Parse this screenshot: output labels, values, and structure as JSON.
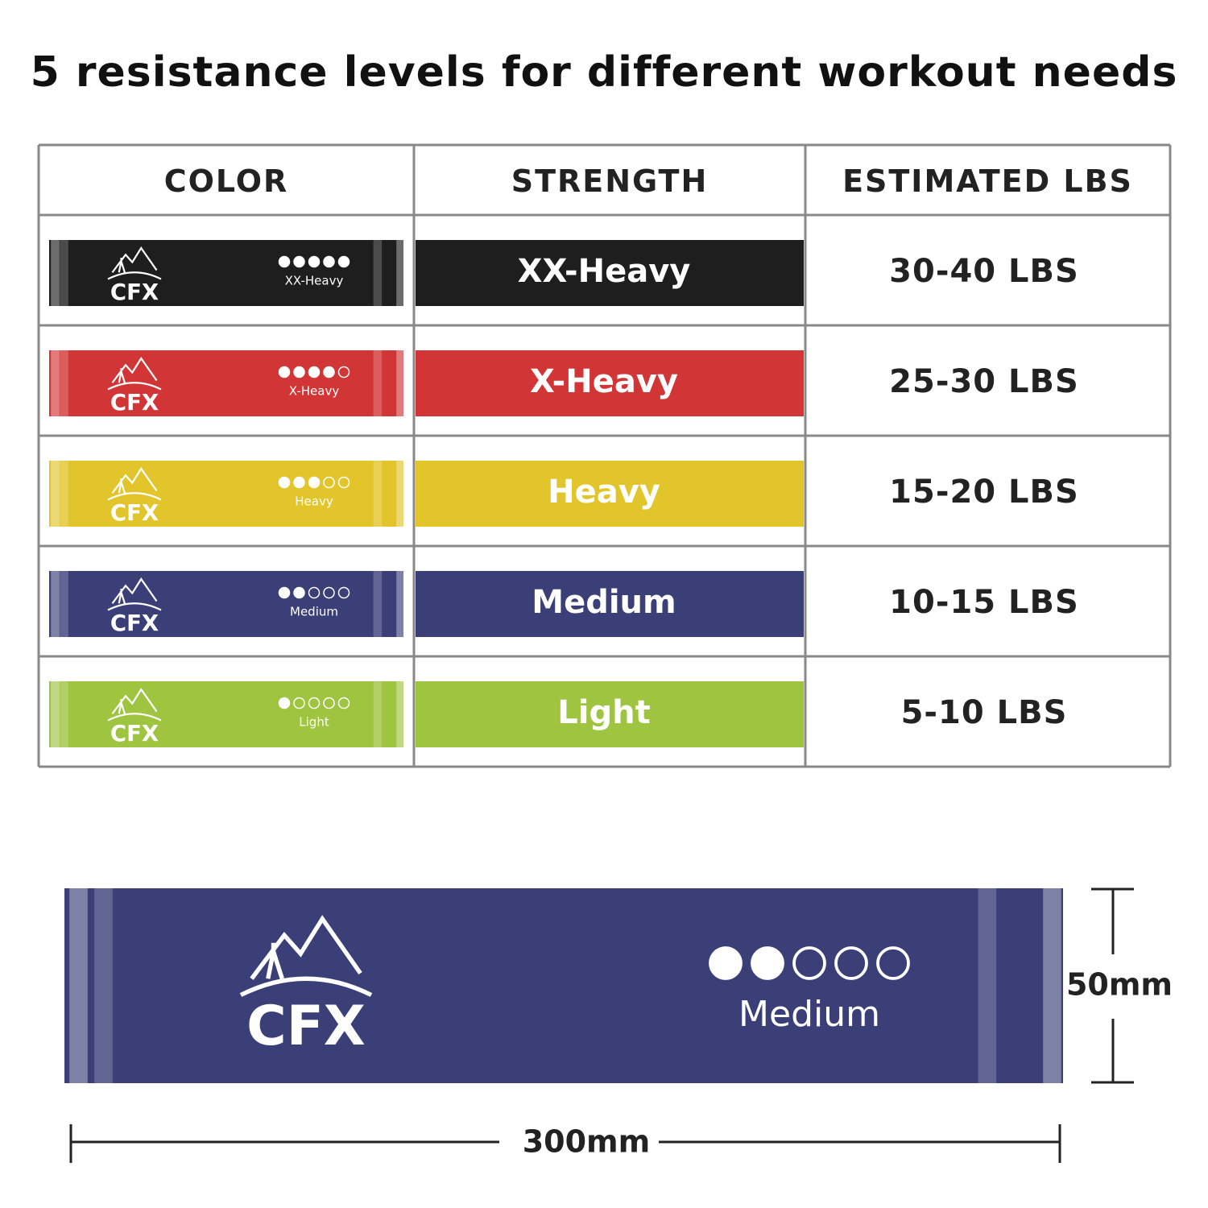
{
  "title": "5 resistance levels for different workout needs",
  "brand": "CFX",
  "table": {
    "headers": [
      "COLOR",
      "STRENGTH",
      "ESTIMATED LBS"
    ],
    "rows": [
      {
        "strength": "XX-Heavy",
        "lbs": "30-40 LBS",
        "color": "#1e1e1e",
        "level": 5
      },
      {
        "strength": "X-Heavy",
        "lbs": "25-30 LBS",
        "color": "#d23535",
        "level": 4
      },
      {
        "strength": "Heavy",
        "lbs": "15-20 LBS",
        "color": "#e2c52a",
        "level": 3
      },
      {
        "strength": "Medium",
        "lbs": "10-15 LBS",
        "color": "#3b3f78",
        "level": 2
      },
      {
        "strength": "Light",
        "lbs": "5-10 LBS",
        "color": "#9fc43f",
        "level": 1
      }
    ]
  },
  "detail": {
    "label": "Medium",
    "color": "#3b3f78",
    "level": 2,
    "height": "50mm",
    "length": "300mm"
  }
}
